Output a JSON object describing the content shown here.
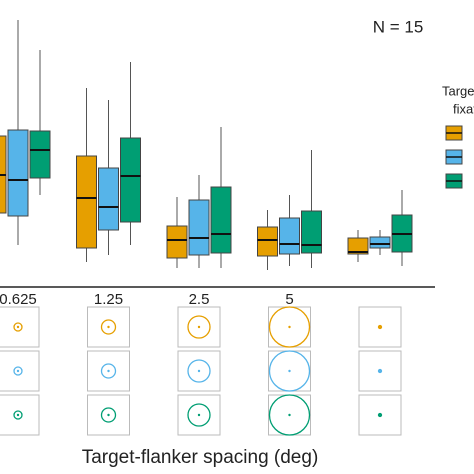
{
  "chart_data": {
    "type": "box",
    "annotation": "N = 15",
    "xlabel": "Target-flanker spacing (deg)",
    "legend_title": [
      "Targe",
      "fixat"
    ],
    "categories": [
      "0.625",
      "1.25",
      "2.5",
      "5",
      null
    ],
    "ylim": [
      0,
      280
    ],
    "series": [
      {
        "color": "#e69f00",
        "q1": [
          67,
          32,
          22,
          24,
          26
        ],
        "median": [
          105,
          82,
          40,
          40,
          28
        ],
        "q3": [
          144,
          124,
          54,
          53,
          42
        ],
        "whislo": [
          35,
          18,
          12,
          10,
          18
        ],
        "whishi": [
          200,
          192,
          83,
          70,
          50
        ]
      },
      {
        "color": "#56b4e9",
        "q1": [
          64,
          50,
          25,
          26,
          32
        ],
        "median": [
          100,
          73,
          42,
          36,
          36
        ],
        "q3": [
          150,
          112,
          80,
          62,
          43
        ],
        "whislo": [
          35,
          25,
          12,
          14,
          25
        ],
        "whishi": [
          260,
          180,
          105,
          85,
          50
        ]
      },
      {
        "color": "#009e73",
        "q1": [
          102,
          58,
          27,
          27,
          28
        ],
        "median": [
          130,
          104,
          46,
          35,
          46
        ],
        "q3": [
          149,
          142,
          93,
          69,
          65
        ],
        "whislo": [
          85,
          35,
          12,
          12,
          14
        ],
        "whishi": [
          230,
          218,
          153,
          130,
          90
        ]
      }
    ]
  }
}
